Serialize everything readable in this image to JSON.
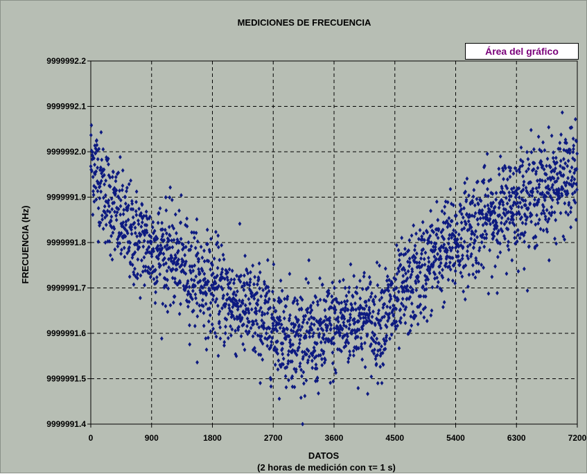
{
  "chart_data": {
    "type": "scatter",
    "title": "MEDICIONES DE FRECUENCIA",
    "xlabel": "DATOS",
    "xlabel_sub": "(2 horas de medición con τ= 1 s)",
    "ylabel": "FRECUENCIA (Hz)",
    "xlim": [
      0,
      7200
    ],
    "ylim": [
      9999991.4,
      9999992.2
    ],
    "x_ticks": [
      0,
      900,
      1800,
      2700,
      3600,
      4500,
      5400,
      6300,
      7200
    ],
    "x_tick_labels": [
      "0",
      "900",
      "1800",
      "2700",
      "3600",
      "4500",
      "5400",
      "6300",
      "7200"
    ],
    "y_ticks": [
      9999991.4,
      9999991.5,
      9999991.6,
      9999991.7,
      9999991.8,
      9999991.9,
      9999992.0,
      9999992.1,
      9999992.2
    ],
    "y_tick_labels": [
      "9999991.4",
      "9999991.5",
      "9999991.6",
      "9999991.7",
      "9999991.8",
      "9999991.9",
      "9999992.0",
      "9999992.1",
      "9999992.2"
    ],
    "grid": true,
    "marker_color": "#0d1a80",
    "background_color": "#b7beb4",
    "point_count": 7200,
    "trend": [
      {
        "x": 0,
        "y": 9999991.985
      },
      {
        "x": 300,
        "y": 9999991.88
      },
      {
        "x": 600,
        "y": 9999991.815
      },
      {
        "x": 900,
        "y": 9999991.79
      },
      {
        "x": 1200,
        "y": 9999991.77
      },
      {
        "x": 1500,
        "y": 9999991.73
      },
      {
        "x": 1800,
        "y": 9999991.7
      },
      {
        "x": 2100,
        "y": 9999991.67
      },
      {
        "x": 2400,
        "y": 9999991.645
      },
      {
        "x": 2700,
        "y": 9999991.62
      },
      {
        "x": 3000,
        "y": 9999991.595
      },
      {
        "x": 3300,
        "y": 9999991.585
      },
      {
        "x": 3600,
        "y": 9999991.61
      },
      {
        "x": 3900,
        "y": 9999991.64
      },
      {
        "x": 4200,
        "y": 9999991.62
      },
      {
        "x": 4500,
        "y": 9999991.66
      },
      {
        "x": 4800,
        "y": 9999991.72
      },
      {
        "x": 5100,
        "y": 9999991.77
      },
      {
        "x": 5400,
        "y": 9999991.8
      },
      {
        "x": 5700,
        "y": 9999991.84
      },
      {
        "x": 6000,
        "y": 9999991.86
      },
      {
        "x": 6300,
        "y": 9999991.89
      },
      {
        "x": 6600,
        "y": 9999991.91
      },
      {
        "x": 6900,
        "y": 9999991.93
      },
      {
        "x": 7200,
        "y": 9999991.95
      }
    ],
    "spread_hz": 0.055
  },
  "tooltip": "Área del gráfico"
}
